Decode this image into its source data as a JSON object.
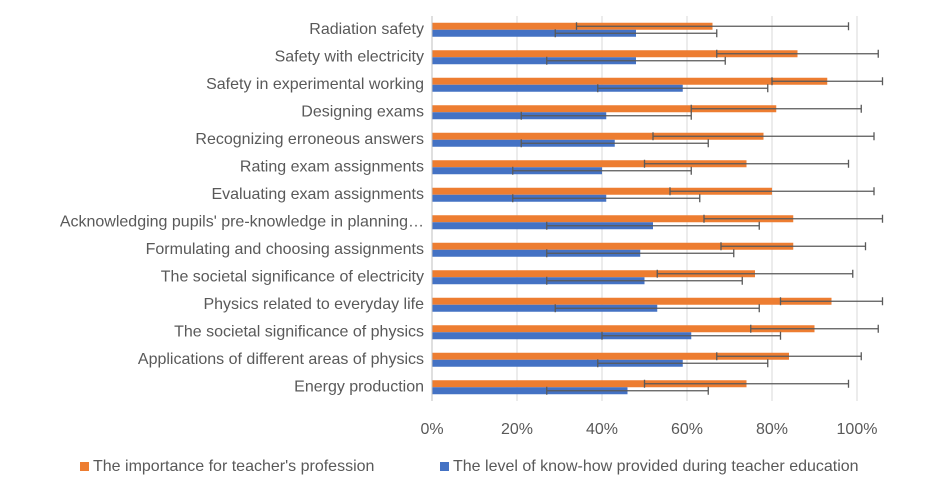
{
  "chart_data": {
    "type": "hbar",
    "categories": [
      "Radiation safety",
      "Safety with electricity",
      "Safety in experimental working",
      "Designing exams",
      "Recognizing erroneous answers",
      "Rating exam assignments",
      "Evaluating exam assignments",
      "Acknowledging pupils' pre-knowledge in planning…",
      "Formulating and choosing assignments",
      "The societal significance of electricity",
      "Physics related to everyday life",
      "The societal significance of physics",
      "Applications of different areas of physics",
      "Energy production"
    ],
    "series": [
      {
        "name": "The importance for teacher's profession",
        "color": "#ed7d31",
        "values": [
          66,
          86,
          93,
          81,
          78,
          74,
          80,
          85,
          85,
          76,
          94,
          90,
          84,
          74
        ],
        "errors": [
          32,
          19,
          13,
          20,
          26,
          24,
          24,
          21,
          17,
          23,
          12,
          15,
          17,
          24
        ]
      },
      {
        "name": "The level of know-how provided during teacher education",
        "color": "#4472c4",
        "values": [
          48,
          48,
          59,
          41,
          43,
          40,
          41,
          52,
          49,
          50,
          53,
          61,
          59,
          46
        ],
        "errors": [
          19,
          21,
          20,
          20,
          22,
          21,
          22,
          25,
          22,
          23,
          24,
          21,
          20,
          19
        ]
      }
    ],
    "xlim": [
      0,
      110
    ],
    "xticks": [
      {
        "value": 0,
        "label": "0%"
      },
      {
        "value": 20,
        "label": "20%"
      },
      {
        "value": 40,
        "label": "40%"
      },
      {
        "value": 60,
        "label": "60%"
      },
      {
        "value": 80,
        "label": "80%"
      },
      {
        "value": 100,
        "label": "100%"
      }
    ],
    "grid": true,
    "legend": "bottom"
  }
}
